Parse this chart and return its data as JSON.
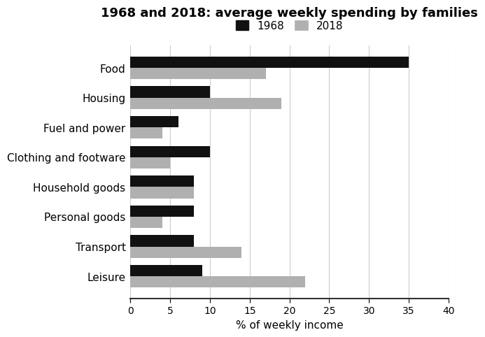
{
  "title": "1968 and 2018: average weekly spending by families",
  "categories": [
    "Food",
    "Housing",
    "Fuel and power",
    "Clothing and footware",
    "Household goods",
    "Personal goods",
    "Transport",
    "Leisure"
  ],
  "values_1968": [
    35,
    10,
    6,
    10,
    8,
    8,
    8,
    9
  ],
  "values_2018": [
    17,
    19,
    4,
    5,
    8,
    4,
    14,
    22
  ],
  "color_1968": "#111111",
  "color_2018": "#b0b0b0",
  "xlabel": "% of weekly income",
  "xlim": [
    0,
    40
  ],
  "xticks": [
    0,
    5,
    10,
    15,
    20,
    25,
    30,
    35,
    40
  ],
  "legend_labels": [
    "1968",
    "2018"
  ],
  "bar_height": 0.38,
  "title_fontsize": 13,
  "label_fontsize": 11,
  "tick_fontsize": 10,
  "background_color": "#ffffff"
}
